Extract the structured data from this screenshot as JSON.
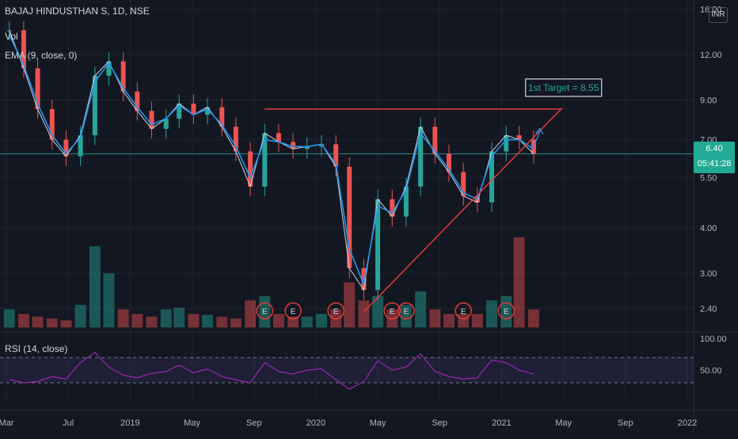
{
  "header": {
    "symbol_title": "BAJAJ HINDUSTHAN S, 1D, NSE",
    "vol_label": "Vol",
    "ema_label": "EMA (9, close, 0)",
    "rsi_label": "RSI (14, close)",
    "currency_badge": "INR"
  },
  "last_price": {
    "value": "6.40",
    "countdown": "05:41:28",
    "color": "#22ab94"
  },
  "annotation": {
    "target_label": "1st Target = 8.55",
    "target_value": 8.55
  },
  "colors": {
    "background": "#131722",
    "up": "#26a69a",
    "down": "#ef5350",
    "ema": "#2196f3",
    "trendline": "#e53935",
    "rsi_line": "#9c27b0",
    "earnings_marker": "#e53935",
    "target_text": "#26a69a"
  },
  "chart_data": [
    {
      "type": "line",
      "name": "price",
      "title": "BAJAJ HINDUSTHAN S, 1D, NSE",
      "y_scale": "log",
      "ylim": [
        2.15,
        16.3
      ],
      "price_axis_ticks": [
        16.0,
        12.0,
        9.0,
        7.0,
        5.5,
        4.0,
        3.0,
        2.4
      ],
      "x_ticks": [
        "Mar",
        "Jul",
        "2019",
        "May",
        "Sep",
        "2020",
        "May",
        "Sep",
        "2021",
        "May",
        "Sep",
        "2022"
      ],
      "x": [
        "2018-03",
        "2018-04",
        "2018-05",
        "2018-06",
        "2018-07",
        "2018-08",
        "2018-09",
        "2018-10",
        "2018-11",
        "2018-12",
        "2019-01",
        "2019-02",
        "2019-03",
        "2019-04",
        "2019-05",
        "2019-06",
        "2019-07",
        "2019-08",
        "2019-09",
        "2019-10",
        "2019-11",
        "2019-12",
        "2020-01",
        "2020-02",
        "2020-03",
        "2020-04",
        "2020-05",
        "2020-06",
        "2020-07",
        "2020-08",
        "2020-09",
        "2020-10",
        "2020-11",
        "2020-12",
        "2021-01",
        "2021-02",
        "2021-03",
        "2021-04"
      ],
      "series": [
        {
          "values": [
            14.0,
            11.0,
            8.5,
            7.0,
            6.3,
            7.2,
            10.5,
            11.5,
            9.5,
            8.4,
            7.5,
            8.0,
            8.8,
            8.2,
            8.6,
            7.6,
            6.5,
            5.2,
            7.3,
            6.9,
            6.6,
            6.7,
            6.8,
            5.9,
            3.1,
            2.7,
            4.8,
            4.3,
            5.2,
            7.6,
            6.4,
            5.7,
            4.9,
            4.7,
            6.5,
            7.2,
            7.0,
            6.4
          ]
        },
        {
          "name": "EMA (9, close, 0)",
          "values": [
            13.6,
            11.2,
            8.8,
            7.2,
            6.4,
            7.1,
            10.1,
            11.4,
            9.7,
            8.6,
            7.7,
            8.0,
            8.7,
            8.2,
            8.5,
            7.7,
            6.7,
            5.5,
            7.0,
            6.9,
            6.7,
            6.7,
            6.8,
            6.0,
            3.5,
            2.8,
            4.6,
            4.4,
            5.1,
            7.3,
            6.5,
            5.8,
            5.0,
            4.8,
            6.3,
            7.0,
            7.0,
            6.6
          ]
        }
      ],
      "last_value": 6.4,
      "resistance_level": 8.5,
      "support_trendline": [
        {
          "x": "2020-04",
          "y": 2.35
        },
        {
          "x": "2021-06",
          "y": 8.55
        }
      ],
      "earnings_events": [
        "2019-09",
        "2019-11",
        "2020-02",
        "2020-06",
        "2020-07",
        "2020-11",
        "2021-02"
      ]
    },
    {
      "type": "bar",
      "name": "volume",
      "title": "Vol",
      "x": [
        "2018-03",
        "2018-04",
        "2018-05",
        "2018-06",
        "2018-07",
        "2018-08",
        "2018-09",
        "2018-10",
        "2018-11",
        "2018-12",
        "2019-01",
        "2019-02",
        "2019-03",
        "2019-04",
        "2019-05",
        "2019-06",
        "2019-07",
        "2019-08",
        "2019-09",
        "2019-10",
        "2019-11",
        "2019-12",
        "2020-01",
        "2020-02",
        "2020-03",
        "2020-04",
        "2020-05",
        "2020-06",
        "2020-07",
        "2020-08",
        "2020-09",
        "2020-10",
        "2020-11",
        "2020-12",
        "2021-01",
        "2021-02",
        "2021-03",
        "2021-04"
      ],
      "values": [
        0.2,
        0.15,
        0.12,
        0.1,
        0.08,
        0.25,
        0.9,
        0.6,
        0.2,
        0.15,
        0.12,
        0.2,
        0.22,
        0.15,
        0.14,
        0.12,
        0.1,
        0.3,
        0.35,
        0.15,
        0.12,
        0.12,
        0.15,
        0.2,
        0.5,
        0.3,
        0.35,
        0.2,
        0.25,
        0.4,
        0.2,
        0.15,
        0.15,
        0.15,
        0.3,
        0.35,
        1.0,
        0.2
      ]
    },
    {
      "type": "line",
      "name": "rsi",
      "title": "RSI (14, close)",
      "ylim": [
        0,
        100
      ],
      "y_ticks": [
        100,
        50
      ],
      "bands": [
        30,
        70
      ],
      "x": [
        "2018-03",
        "2018-04",
        "2018-05",
        "2018-06",
        "2018-07",
        "2018-08",
        "2018-09",
        "2018-10",
        "2018-11",
        "2018-12",
        "2019-01",
        "2019-02",
        "2019-03",
        "2019-04",
        "2019-05",
        "2019-06",
        "2019-07",
        "2019-08",
        "2019-09",
        "2019-10",
        "2019-11",
        "2019-12",
        "2020-01",
        "2020-02",
        "2020-03",
        "2020-04",
        "2020-05",
        "2020-06",
        "2020-07",
        "2020-08",
        "2020-09",
        "2020-10",
        "2020-11",
        "2020-12",
        "2021-01",
        "2021-02",
        "2021-03",
        "2021-04"
      ],
      "values": [
        35,
        30,
        32,
        40,
        36,
        62,
        78,
        55,
        42,
        38,
        45,
        48,
        58,
        46,
        52,
        40,
        35,
        30,
        62,
        48,
        44,
        50,
        52,
        35,
        20,
        32,
        65,
        50,
        55,
        76,
        48,
        40,
        36,
        38,
        66,
        62,
        50,
        44
      ]
    }
  ]
}
